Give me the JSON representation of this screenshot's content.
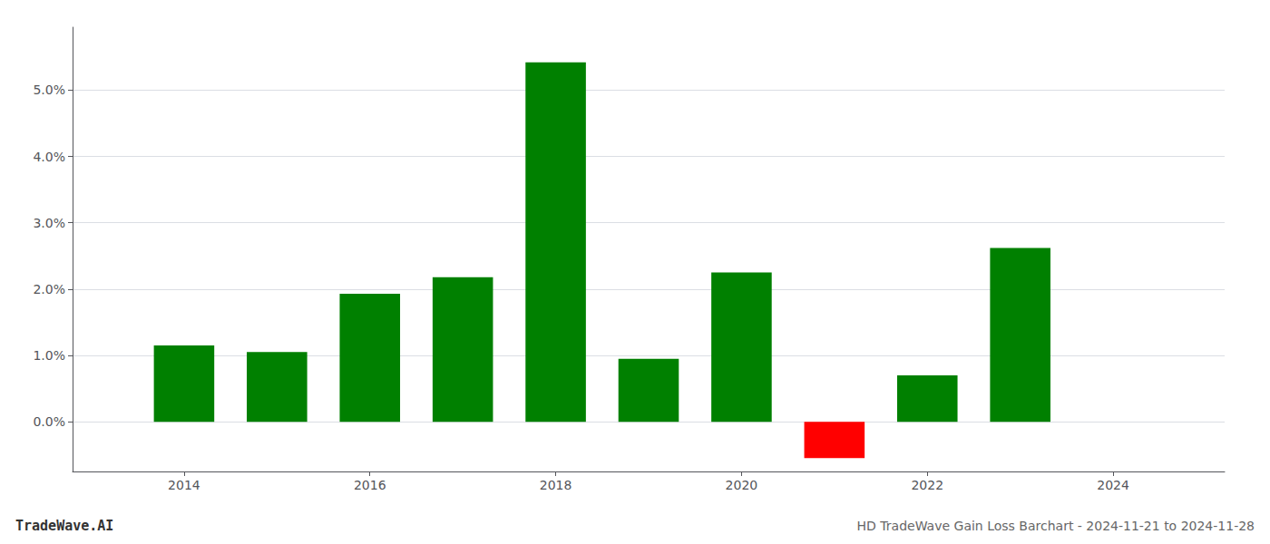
{
  "chart_data": {
    "type": "bar",
    "title": "HD TradeWave Gain Loss Barchart - 2024-11-21 to 2024-11-28",
    "annotations": [
      "TradeWave.AI"
    ],
    "x": [
      2014,
      2015,
      2016,
      2017,
      2018,
      2019,
      2020,
      2021,
      2022,
      2023
    ],
    "values": [
      1.15,
      1.05,
      1.93,
      2.18,
      5.42,
      0.95,
      2.25,
      -0.55,
      0.7,
      2.62
    ],
    "colors": [
      "#008000",
      "#008000",
      "#008000",
      "#008000",
      "#008000",
      "#008000",
      "#008000",
      "#ff0000",
      "#008000",
      "#008000"
    ],
    "xlim": [
      2012.8,
      2025.2
    ],
    "xticks": [
      2014,
      2016,
      2018,
      2020,
      2022,
      2024
    ],
    "ylim": [
      -0.75,
      5.95
    ],
    "yticks": [
      {
        "value": 0.0,
        "label": "0.0%"
      },
      {
        "value": 1.0,
        "label": "1.0%"
      },
      {
        "value": 2.0,
        "label": "2.0%"
      },
      {
        "value": 3.0,
        "label": "3.0%"
      },
      {
        "value": 4.0,
        "label": "4.0%"
      },
      {
        "value": 5.0,
        "label": "5.0%"
      }
    ],
    "grid": true
  }
}
